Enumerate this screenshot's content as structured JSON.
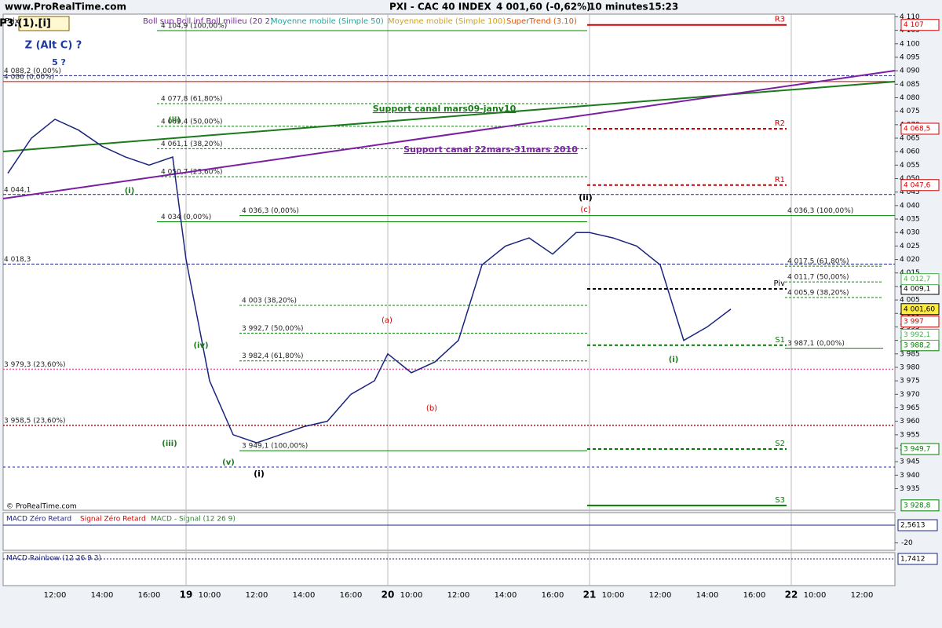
{
  "header": {
    "site": "www.ProRealTime.com",
    "instrument": "PXI - CAC 40 INDEX",
    "quote": "4 001,60 (-0,62%)",
    "period": "10 minutes",
    "time": "15:23"
  },
  "legend": [
    "Prix",
    "Boll sup Boll inf Boll milieu (20 2)",
    "Moyenne mobile (Simple 50)",
    "Moyenne mobile (Simple 100)",
    "SuperTrend (3.10)"
  ],
  "copyright": "© ProRealTime.com",
  "chart_data": {
    "type": "line",
    "categories": [
      null,
      null,
      "12:00",
      null,
      "14:00",
      null,
      "16:00",
      null,
      "19",
      "10:00",
      null,
      "12:00",
      null,
      "14:00",
      null,
      "16:00",
      null,
      "20",
      "10:00",
      null,
      "12:00",
      null,
      "14:00",
      null,
      "16:00",
      null,
      "21",
      "10:00",
      null,
      "12:00",
      null,
      "14:00",
      null,
      "16:00",
      null,
      "22",
      "10:00",
      null,
      "12:00",
      null
    ],
    "series": [
      {
        "name": "Prix",
        "color": "#1a237e",
        "values": [
          4052,
          4065,
          4072,
          4068,
          4062,
          4058,
          4055,
          4058,
          4020,
          3975,
          3955,
          3952,
          3955,
          3958,
          3960,
          3970,
          3975,
          3985,
          3978,
          3982,
          3990,
          4018,
          4025,
          4028,
          4022,
          4030,
          4030,
          4028,
          4025,
          4018,
          3990,
          3995,
          4001.6,
          null,
          null,
          null,
          null,
          null,
          null,
          null
        ]
      }
    ],
    "ylim": [
      3927,
      4111
    ],
    "yticks": [
      {
        "value": 3935,
        "label": "3 935"
      },
      {
        "value": 3940,
        "label": "3 940"
      },
      {
        "value": 3945,
        "label": "3 945"
      },
      {
        "value": 3950,
        "label": "3 950"
      },
      {
        "value": 3955,
        "label": "3 955"
      },
      {
        "value": 3960,
        "label": "3 960"
      },
      {
        "value": 3965,
        "label": "3 965"
      },
      {
        "value": 3970,
        "label": "3 970"
      },
      {
        "value": 3975,
        "label": "3 975"
      },
      {
        "value": 3980,
        "label": "3 980"
      },
      {
        "value": 3985,
        "label": "3 985"
      },
      {
        "value": 3990,
        "label": "3 990"
      },
      {
        "value": 3995,
        "label": "3 995"
      },
      {
        "value": 4000,
        "label": "4 000"
      },
      {
        "value": 4005,
        "label": "4 005"
      },
      {
        "value": 4010,
        "label": "4 010"
      },
      {
        "value": 4015,
        "label": "4 015"
      },
      {
        "value": 4020,
        "label": "4 020"
      },
      {
        "value": 4025,
        "label": "4 025"
      },
      {
        "value": 4030,
        "label": "4 030"
      },
      {
        "value": 4035,
        "label": "4 035"
      },
      {
        "value": 4040,
        "label": "4 040"
      },
      {
        "value": 4045,
        "label": "4 045"
      },
      {
        "value": 4050,
        "label": "4 050"
      },
      {
        "value": 4055,
        "label": "4 055"
      },
      {
        "value": 4060,
        "label": "4 060"
      },
      {
        "value": 4065,
        "label": "4 065"
      },
      {
        "value": 4070,
        "label": "4 070"
      },
      {
        "value": 4075,
        "label": "4 075"
      },
      {
        "value": 4080,
        "label": "4 080"
      },
      {
        "value": 4085,
        "label": "4 085"
      },
      {
        "value": 4090,
        "label": "4 090"
      },
      {
        "value": 4095,
        "label": "4 095"
      },
      {
        "value": 4100,
        "label": "4 100"
      },
      {
        "value": 4105,
        "label": "4 105"
      },
      {
        "value": 4110,
        "label": "4 110"
      }
    ],
    "levels": [
      {
        "value": 4104.9,
        "label": "4 104,9 (100,00%)"
      },
      {
        "value": 4088.2,
        "label": "4 088,2 (0,00%)"
      },
      {
        "value": 4086,
        "label": "4 086 (0,00%)"
      },
      {
        "value": 4077.8,
        "label": "4 077,8 (61,80%)"
      },
      {
        "value": 4069.4,
        "label": "4 069,4 (50,00%)"
      },
      {
        "value": 4061.1,
        "label": "4 061,1 (38,20%)"
      },
      {
        "value": 4050.7,
        "label": "4 050,7 (23,60%)"
      },
      {
        "value": 4044.1,
        "label": "4 044,1"
      },
      {
        "value": 4034,
        "label": "4 034 (0,00%)"
      },
      {
        "value": 4036.3,
        "label": "4 036,3 (0,00%)"
      },
      {
        "value": 4036.3,
        "label": "4 036,3 (100,00%)"
      },
      {
        "value": 4018.3,
        "label": "4 018,3"
      },
      {
        "value": 4017.5,
        "label": "4 017,5 (61,80%)"
      },
      {
        "value": 4011.7,
        "label": "4 011,7 (50,00%)"
      },
      {
        "value": 4005.9,
        "label": "4 005,9 (38,20%)"
      },
      {
        "value": 4003,
        "label": "4 003 (38,20%)"
      },
      {
        "value": 3992.7,
        "label": "3 992,7 (50,00%)"
      },
      {
        "value": 3982.4,
        "label": "3 982,4 (61,80%)"
      },
      {
        "value": 3987.1,
        "label": "3 987,1 (0,00%)"
      },
      {
        "value": 3979.3,
        "label": "3 979,3 (23,60%)"
      },
      {
        "value": 3958.5,
        "label": "3 958,5 (23,60%)"
      },
      {
        "value": 3949.1,
        "label": "3 949,1 (100,00%)"
      },
      {
        "value": 3943
      }
    ],
    "pivots": [
      {
        "name": "R3",
        "value": 4107,
        "value_label": "4 107",
        "color": "#d00000"
      },
      {
        "name": "R2",
        "value": 4068.5,
        "value_label": "4 068,5",
        "color": "#d00000"
      },
      {
        "name": "R1",
        "value": 4047.6,
        "value_label": "4 047,6",
        "color": "#d00000"
      },
      {
        "name": "Piv",
        "value": 4009.1,
        "value_label": "4 009,1",
        "color": "#000000"
      },
      {
        "name": "S1",
        "value": 3988.2,
        "value_label": "3 988,2",
        "color": "#008000"
      },
      {
        "name": "S2",
        "value": 3949.7,
        "value_label": "3 949,7",
        "color": "#008000"
      },
      {
        "name": "S3",
        "value": 3928.8,
        "value_label": "3 928,8",
        "color": "#008000"
      }
    ],
    "markers": [
      {
        "value": 4012.7,
        "value_label": "4 012,7",
        "color": "#4caf50"
      },
      {
        "value": 4001.6,
        "value_label": "4 001,60",
        "color": "#000000"
      },
      {
        "value": 3997,
        "value_label": "3 997",
        "color": "#d00000"
      },
      {
        "value": 3992.1,
        "value_label": "3 992,1",
        "color": "#4caf50"
      }
    ],
    "annotations": [
      "P3.(1).[i]",
      "Z (Alt C) ?",
      "5 ?",
      "Support canal mars09-janv10",
      "Support canal 22mars-31mars 2010",
      "(i)",
      "(ii)",
      "(iii)",
      "(iv)",
      "(v)",
      "(i)",
      "(a)",
      "(b)",
      "(c)",
      "(ii)",
      "(i)"
    ]
  },
  "macd": {
    "names": [
      "MACD Zéro Retard",
      "Signal Zéro Retard",
      "MACD - Signal (12 26 9)"
    ],
    "ylim": [
      -29.4,
      18.6
    ],
    "yticks": [
      {
        "value": -20,
        "label": "-20"
      }
    ],
    "value": 2.5613,
    "value_label": "2,5613"
  },
  "rainbow": {
    "name": "MACD Rainbow (12 26 9 3)",
    "value": 1.7412,
    "value_label": "1,7412"
  }
}
